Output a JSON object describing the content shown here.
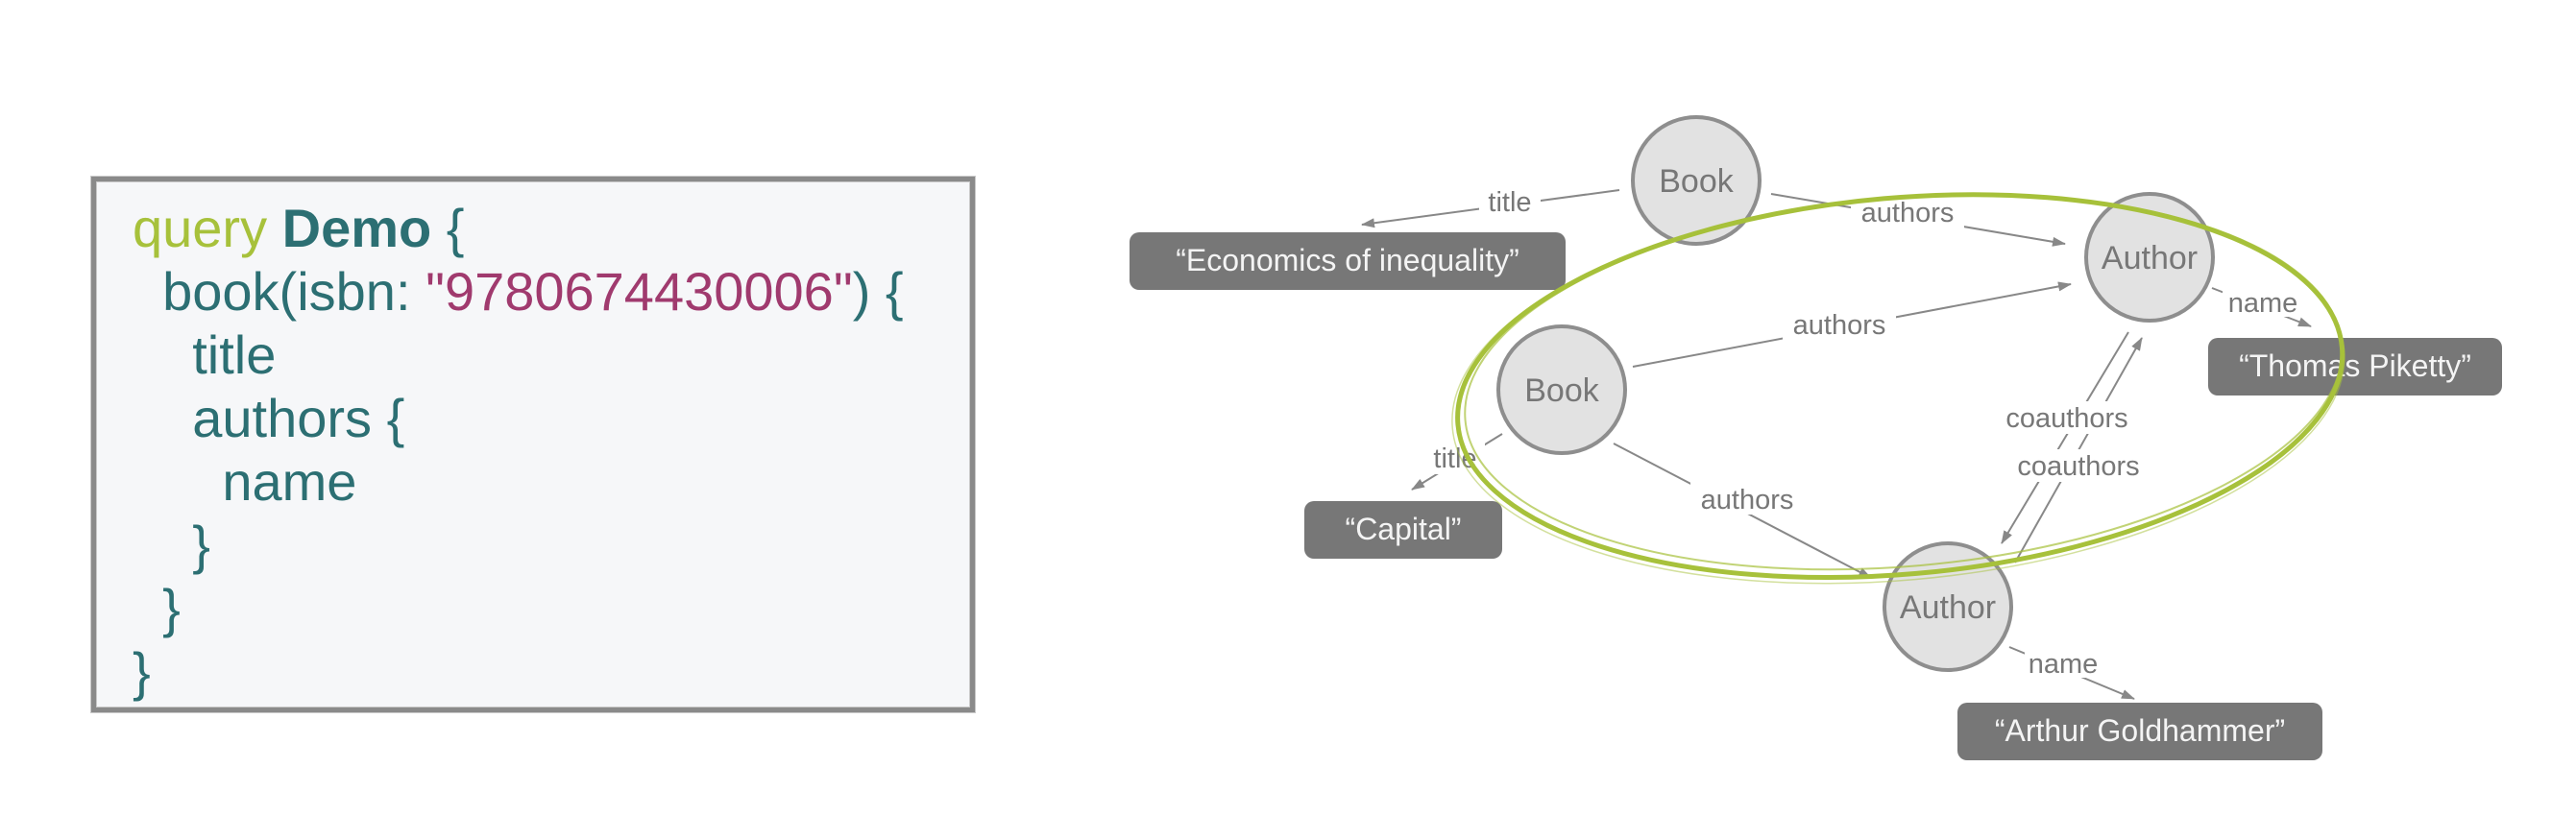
{
  "query": {
    "keyword": "query",
    "operation_name": "Demo",
    "lines": [
      {
        "indent": 0,
        "parts": [
          {
            "t": "query",
            "c": "kw"
          },
          {
            "t": " "
          },
          {
            "t": "Demo",
            "c": "op"
          },
          {
            "t": " {"
          }
        ]
      },
      {
        "indent": 1,
        "parts": [
          {
            "t": "book(isbn: "
          },
          {
            "t": "\"9780674430006\"",
            "c": "str"
          },
          {
            "t": ") {"
          }
        ]
      },
      {
        "indent": 2,
        "parts": [
          {
            "t": "title"
          }
        ]
      },
      {
        "indent": 2,
        "parts": [
          {
            "t": "authors {"
          }
        ]
      },
      {
        "indent": 3,
        "parts": [
          {
            "t": "name"
          }
        ]
      },
      {
        "indent": 2,
        "parts": [
          {
            "t": "}"
          }
        ]
      },
      {
        "indent": 1,
        "parts": [
          {
            "t": "}"
          }
        ]
      },
      {
        "indent": 0,
        "parts": [
          {
            "t": "}"
          }
        ]
      }
    ]
  },
  "graph": {
    "nodes": {
      "book_top": "Book",
      "book_mid": "Book",
      "author_top": "Author",
      "author_bottom": "Author"
    },
    "literals": {
      "economics": "“Economics of inequality”",
      "capital": "“Capital”",
      "piketty": "“Thomas Piketty”",
      "goldhammer": "“Arthur Goldhammer”"
    },
    "edges": {
      "title_top": "title",
      "authors_top": "authors",
      "authors_mid_top": "authors",
      "title_mid": "title",
      "authors_mid_bottom": "authors",
      "name_top": "name",
      "coauthors_1": "coauthors",
      "coauthors_2": "coauthors",
      "name_bottom": "name"
    },
    "colors": {
      "highlight": "#a7c13b",
      "node_fill": "#e2e2e2",
      "literal_fill": "#777777",
      "query_keyword": "#a7c13b",
      "query_string": "#a03a6e",
      "query_text": "#2c6f73"
    }
  }
}
